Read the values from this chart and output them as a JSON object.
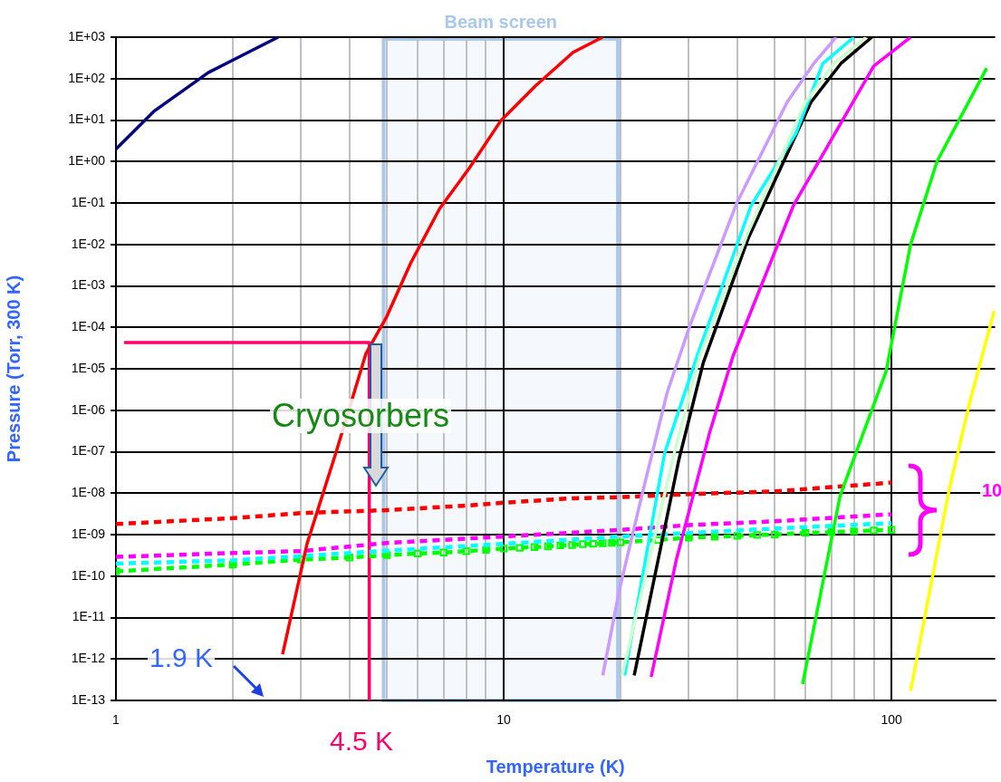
{
  "chart_data": {
    "type": "line",
    "xlabel": "Temperature (K)",
    "ylabel": "Pressure (Torr, 300 K)",
    "log": "xy",
    "grid": true,
    "marker": "none",
    "xlim": [
      1,
      185
    ],
    "ylim": [
      1e-13,
      1000
    ],
    "xticks": [
      1,
      {
        "value": 2,
        "label": null
      },
      {
        "value": 3,
        "label": null
      },
      {
        "value": 4,
        "label": null
      },
      {
        "value": 5,
        "label": null
      },
      {
        "value": 6,
        "label": null
      },
      {
        "value": 7,
        "label": null
      },
      {
        "value": 8,
        "label": null
      },
      {
        "value": 9,
        "label": null
      },
      10,
      {
        "value": 20,
        "label": null
      },
      {
        "value": 30,
        "label": null
      },
      {
        "value": 40,
        "label": null
      },
      {
        "value": 50,
        "label": null
      },
      {
        "value": 60,
        "label": null
      },
      {
        "value": 70,
        "label": null
      },
      {
        "value": 80,
        "label": null
      },
      {
        "value": 90,
        "label": null
      },
      100
    ],
    "yticks": [
      {
        "value": 1e-13,
        "label": "1E-13"
      },
      {
        "value": 1e-12,
        "label": "1E-12"
      },
      {
        "value": 1e-11,
        "label": "1E-11"
      },
      {
        "value": 1e-10,
        "label": "1E-10"
      },
      {
        "value": 1e-09,
        "label": "1E-09"
      },
      {
        "value": 1e-08,
        "label": "1E-08"
      },
      {
        "value": 1e-07,
        "label": "1E-07"
      },
      {
        "value": 1e-06,
        "label": "1E-06"
      },
      {
        "value": 1e-05,
        "label": "1E-05"
      },
      {
        "value": 0.0001,
        "label": "1E-04"
      },
      {
        "value": 0.001,
        "label": "1E-03"
      },
      {
        "value": 0.01,
        "label": "1E-02"
      },
      {
        "value": 0.1,
        "label": "1E-01"
      },
      {
        "value": 1,
        "label": "1E+00"
      },
      {
        "value": 10,
        "label": "1E+01"
      },
      {
        "value": 100,
        "label": "1E+02"
      },
      {
        "value": 1000,
        "label": "1E+03"
      }
    ],
    "bands": [
      {
        "axis": "x",
        "from": 4.9,
        "to": 19.7,
        "label": "Beam screen",
        "color": "#a9c8ec"
      }
    ],
    "annotations": [
      "Cryosorbers",
      "1.9 K",
      "4.5 K",
      "10"
    ],
    "series": [
      {
        "color": "#000080",
        "line_style": "solid",
        "x": [
          1,
          1.25,
          1.73,
          2.62
        ],
        "values": [
          2,
          16,
          140,
          1000
        ]
      },
      {
        "color": "#ff0000",
        "line_style": "solid",
        "x": [
          2.69,
          3.11,
          3.69,
          4.41,
          4.99,
          5.76,
          6.84,
          8.16,
          9.84,
          12.06,
          15.1,
          18
        ],
        "values": [
          1.3e-12,
          6e-10,
          9.3e-08,
          2.3e-05,
          0.00018,
          0.0036,
          0.074,
          0.7,
          9.8,
          66,
          430,
          1000
        ]
      },
      {
        "color": "#cc99ff",
        "line_style": "solid",
        "x": [
          18,
          19.9,
          22.7,
          26.4,
          30.2,
          39.8,
          53.8,
          63,
          72
        ],
        "values": [
          4e-13,
          4.9e-11,
          8.7e-09,
          2.7e-06,
          0.00011,
          0.095,
          27,
          230,
          1000
        ]
      },
      {
        "color": "#ccffcc",
        "line_style": "solid",
        "x": [
          20.2,
          27.5,
          32,
          42.7,
          60,
          71,
          86
        ],
        "values": [
          4e-13,
          9e-08,
          2e-05,
          0.02,
          27,
          230,
          1000
        ]
      },
      {
        "color": "#00ffff",
        "line_style": "solid",
        "x": [
          20.5,
          26,
          31.5,
          43.4,
          56.7,
          66.5,
          80
        ],
        "values": [
          4e-13,
          9.3e-08,
          2e-05,
          0.085,
          4.8,
          230,
          1000
        ]
      },
      {
        "color": "#000000",
        "line_style": "solid",
        "x": [
          21.7,
          28.3,
          32.7,
          42.7,
          62,
          74,
          89
        ],
        "values": [
          4e-13,
          6.5e-08,
          1.4e-05,
          0.014,
          27,
          230,
          1000
        ]
      },
      {
        "color": "#ff00ff",
        "line_style": "solid",
        "x": [
          24,
          27.9,
          34,
          39,
          55.8,
          90,
          112
        ],
        "values": [
          3.7e-13,
          2.6e-10,
          3e-07,
          2e-05,
          0.085,
          200,
          1000
        ]
      },
      {
        "color": "#00ff00",
        "line_style": "solid",
        "x": [
          59,
          73.7,
          96.8,
          112,
          131,
          176
        ],
        "values": [
          2.5e-13,
          8.7e-09,
          8.5e-06,
          0.01,
          1,
          180
        ]
      },
      {
        "color": "#ffff00",
        "line_style": "solid",
        "x": [
          112,
          141,
          160,
          184
        ],
        "values": [
          1.7e-13,
          1.3e-08,
          1.9e-06,
          0.00025
        ]
      },
      {
        "color": "#ff0000",
        "line_style": "dashed",
        "x": [
          1,
          2,
          3,
          5,
          8,
          10,
          15,
          20,
          30,
          50,
          70,
          100
        ],
        "values": [
          1.8e-09,
          2.5e-09,
          3.3e-09,
          3.9e-09,
          5e-09,
          5.9e-09,
          7.5e-09,
          8e-09,
          9.5e-09,
          1.1e-08,
          1.4e-08,
          1.8e-08
        ]
      },
      {
        "color": "#ff00ff",
        "line_style": "dashed",
        "x": [
          1,
          2,
          3,
          5,
          10,
          20,
          30,
          50,
          100
        ],
        "values": [
          2.9e-10,
          3.6e-10,
          4e-10,
          6.3e-10,
          9e-10,
          1.3e-09,
          1.7e-09,
          2.1e-09,
          3.1e-09
        ]
      },
      {
        "color": "#00ffff",
        "line_style": "dashed",
        "x": [
          1,
          2,
          5,
          10,
          20,
          50,
          100
        ],
        "values": [
          2e-10,
          2.4e-10,
          4.1e-10,
          6e-10,
          9e-10,
          1.4e-09,
          1.9e-09
        ]
      },
      {
        "color": "#00ff00",
        "line_style": "dashed",
        "marker": "square",
        "x": [
          1,
          2,
          3,
          4,
          5,
          6,
          7,
          8,
          9,
          10,
          11,
          12,
          13,
          14,
          15,
          16,
          17,
          18,
          19,
          20,
          25,
          30,
          35,
          40,
          45,
          50,
          60,
          70,
          80,
          90,
          100
        ],
        "values": [
          1.3e-10,
          1.9e-10,
          2.5e-10,
          2.8e-10,
          3.2e-10,
          3.5e-10,
          3.7e-10,
          4e-10,
          4.3e-10,
          4.6e-10,
          4.8e-10,
          5e-10,
          5.2e-10,
          5.5e-10,
          5.6e-10,
          5.9e-10,
          6e-10,
          6.2e-10,
          6.3e-10,
          6.5e-10,
          7.4e-10,
          8.5e-10,
          8.9e-10,
          9.3e-10,
          9.8e-10,
          1e-09,
          1.1e-09,
          1.15e-09,
          1.2e-09,
          1.26e-09,
          1.3e-09
        ]
      },
      {
        "color": "#ff0066",
        "line_style": "solid",
        "x": [
          1.05,
          4.5,
          4.5
        ],
        "values": [
          4.3e-05,
          4.3e-05,
          1e-13
        ]
      }
    ]
  }
}
